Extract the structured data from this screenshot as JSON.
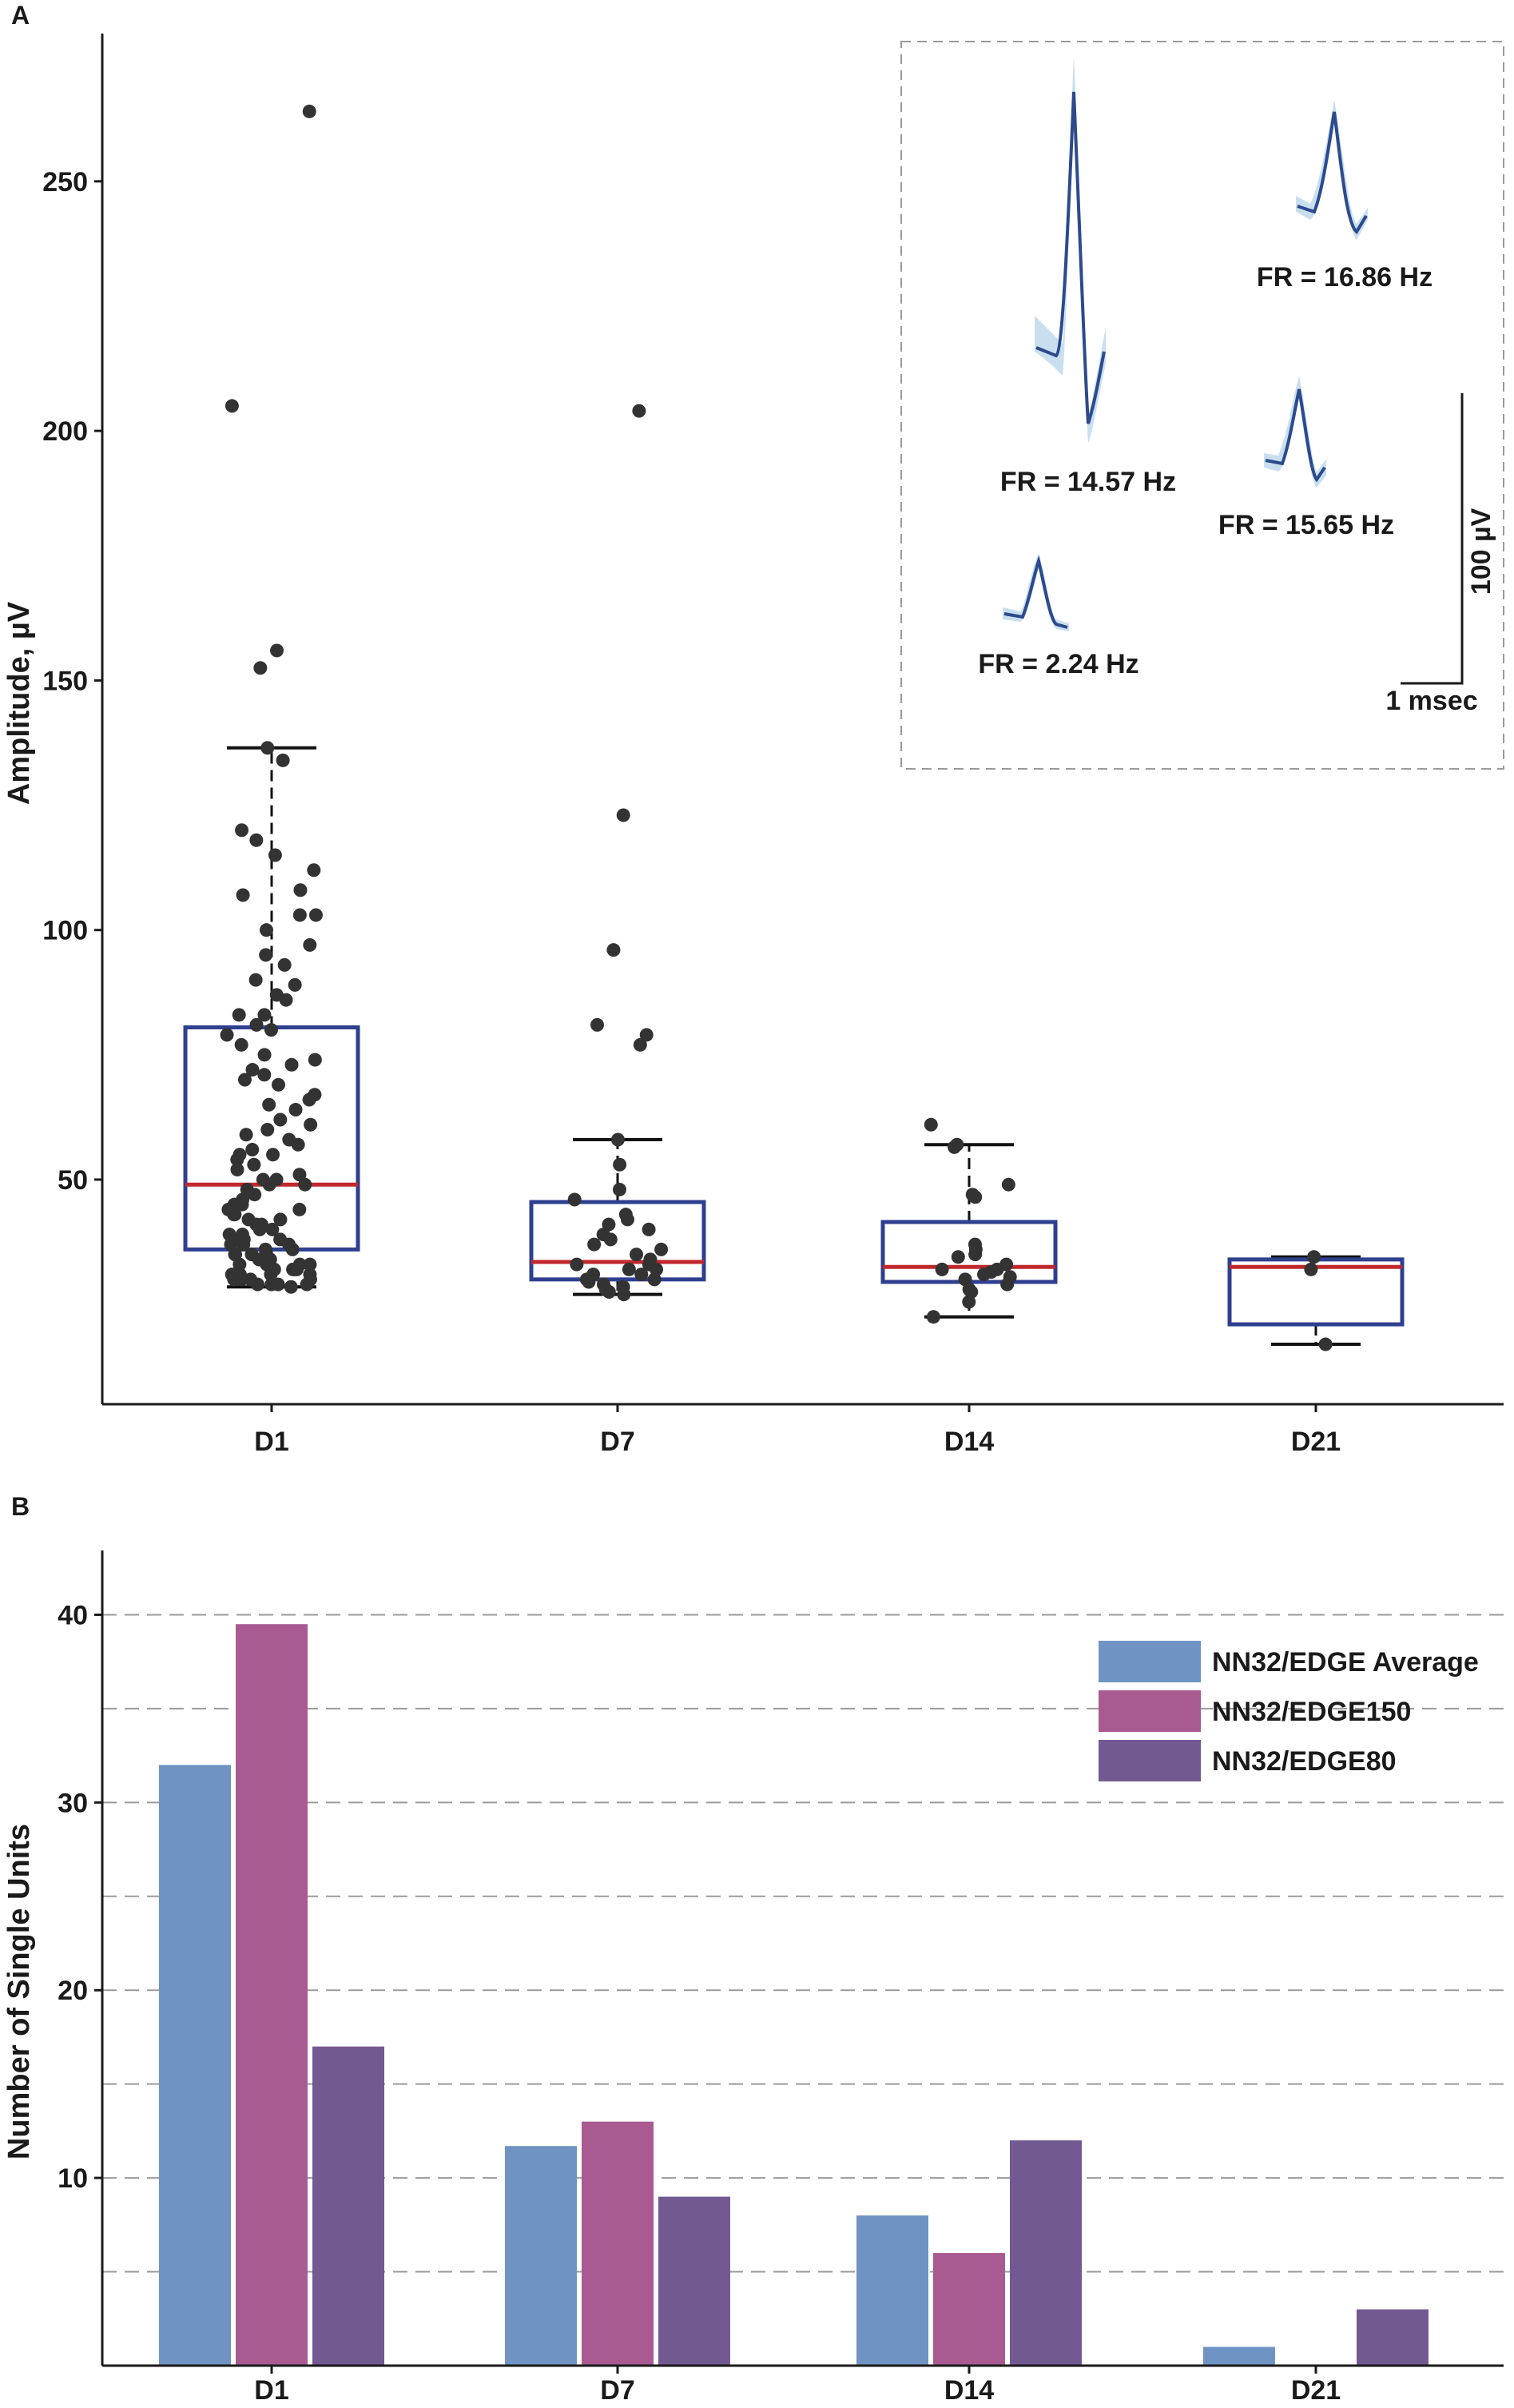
{
  "chart_data": [
    {
      "panel": "A",
      "type": "box",
      "title": "",
      "xlabel": "",
      "ylabel": "Amplitude, µV",
      "categories": [
        "D1",
        "D7",
        "D14",
        "D21"
      ],
      "ylim": [
        5,
        278
      ],
      "yticks": [
        50,
        100,
        150,
        200,
        250
      ],
      "grid": false,
      "colors": {
        "box": "#2f3f8f",
        "median": "#c0282d",
        "whisker": "#111111",
        "point": "#333333"
      },
      "boxes": [
        {
          "category": "D1",
          "q1": 36,
          "median": 49,
          "q3": 80.5,
          "whisker_low": 28.5,
          "whisker_high": 136.5
        },
        {
          "category": "D7",
          "q1": 30,
          "median": 33.5,
          "q3": 45.5,
          "whisker_low": 27,
          "whisker_high": 58
        },
        {
          "category": "D14",
          "q1": 29.5,
          "median": 32.5,
          "q3": 41.5,
          "whisker_low": 22.5,
          "whisker_high": 57
        },
        {
          "category": "D21",
          "q1": 21,
          "median": 32.5,
          "q3": 34,
          "whisker_low": 17,
          "whisker_high": 34.5
        }
      ],
      "points": [
        [
          264,
          205,
          156,
          152.5,
          136.5,
          134,
          120,
          118,
          115,
          112,
          108,
          107,
          103,
          103,
          100,
          97,
          95,
          93,
          90,
          89,
          87,
          86,
          83,
          83,
          81,
          80,
          79,
          77,
          75,
          74,
          73,
          72,
          71,
          70,
          69,
          67,
          66,
          65,
          64,
          62,
          61,
          60,
          59,
          58,
          57,
          56,
          55,
          55,
          54,
          53,
          52,
          51,
          50,
          50,
          49,
          49,
          48,
          47,
          46,
          45,
          45,
          44,
          44,
          43,
          43,
          42,
          42,
          41,
          41,
          40,
          40,
          39,
          39,
          38,
          38,
          38,
          37,
          37,
          37,
          36,
          36,
          35,
          35,
          35,
          34,
          34,
          34,
          33,
          33,
          33,
          33,
          32,
          32,
          32,
          32,
          31,
          31,
          31,
          31,
          30,
          30,
          30,
          30,
          29,
          29,
          29,
          29,
          28.5
        ],
        [
          204,
          123,
          96,
          81,
          79,
          77,
          58,
          53,
          48,
          46,
          43,
          42,
          41,
          40,
          39,
          38,
          37,
          36,
          35,
          34,
          33,
          33,
          32,
          32,
          31,
          31,
          30,
          30,
          29.5,
          29,
          28.5,
          28,
          27.5,
          27
        ],
        [
          61,
          57,
          56.5,
          49,
          47,
          46.5,
          37,
          36,
          35,
          34.5,
          33,
          32,
          32,
          31.5,
          31,
          30.5,
          30,
          29,
          28,
          27.5,
          25.5,
          22.5
        ],
        [
          34.5,
          32,
          17
        ]
      ],
      "inset": {
        "waveforms": [
          {
            "label": "FR = 14.57 Hz",
            "peak": "large"
          },
          {
            "label": "FR = 16.86 Hz",
            "peak": "medium"
          },
          {
            "label": "FR = 15.65 Hz",
            "peak": "small"
          },
          {
            "label": "FR = 2.24 Hz",
            "peak": "tiny"
          }
        ],
        "scale_bar_y": "100 µV",
        "scale_bar_x": "1 msec"
      }
    },
    {
      "panel": "B",
      "type": "bar",
      "title": "",
      "xlabel": "",
      "ylabel": "Number of Single Units",
      "categories": [
        "D1",
        "D7",
        "D14",
        "D21"
      ],
      "ylim": [
        0,
        43
      ],
      "yticks": [
        10,
        20,
        30,
        40
      ],
      "grid": true,
      "gridlines": [
        5,
        10,
        15,
        20,
        25,
        30,
        35,
        40
      ],
      "legend_position": "top-right",
      "series": [
        {
          "name": "NN32/EDGE Average",
          "color": "#6f93c2",
          "values": [
            32,
            11.7,
            8,
            1
          ]
        },
        {
          "name": "NN32/EDGE150",
          "color": "#a95b91",
          "values": [
            39.5,
            13,
            6,
            0
          ]
        },
        {
          "name": "NN32/EDGE80",
          "color": "#735992",
          "values": [
            17,
            9,
            12,
            3
          ]
        }
      ]
    }
  ]
}
